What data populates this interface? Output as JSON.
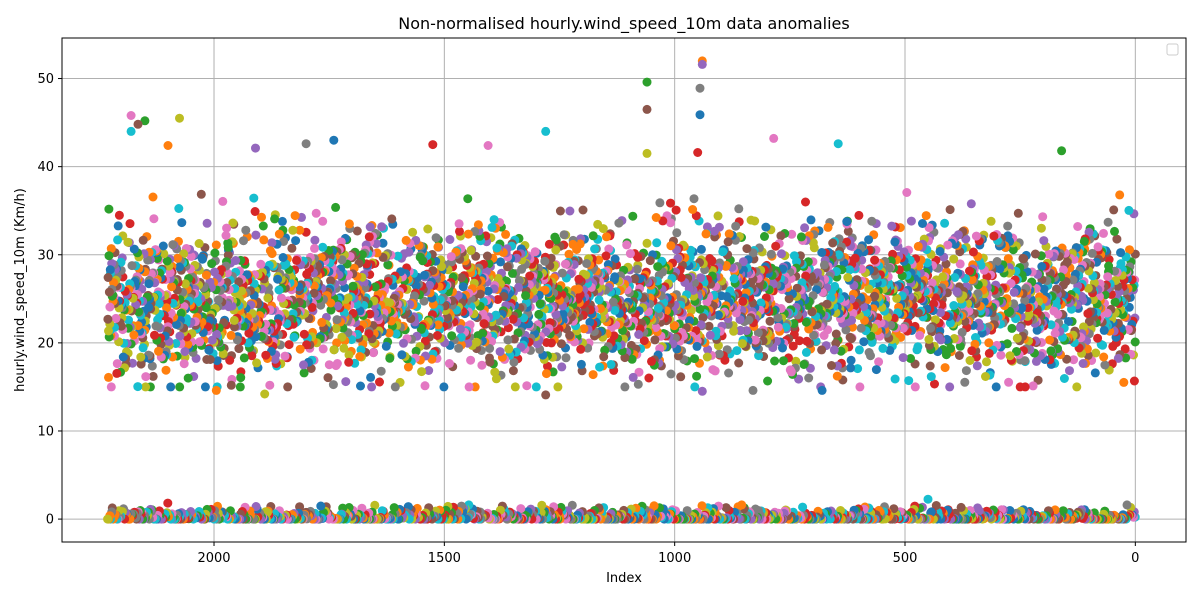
{
  "chart_data": {
    "type": "scatter",
    "title": "Non-normalised hourly.wind_speed_10m data anomalies",
    "xlabel": "Index",
    "ylabel": "hourly.wind_speed_10m (Km/h)",
    "xlim": [
      2330,
      -110
    ],
    "ylim": [
      -2.6,
      54.6
    ],
    "x_inverted": true,
    "xticks": [
      2000,
      1500,
      1000,
      500,
      0
    ],
    "yticks": [
      0,
      10,
      20,
      30,
      40,
      50
    ],
    "grid": true,
    "legend": "top-right (empty)",
    "marker": "circle",
    "index_range": [
      0,
      2230
    ],
    "colors": [
      "#1f77b4",
      "#ff7f0e",
      "#2ca02c",
      "#d62728",
      "#9467bd",
      "#8c564b",
      "#e377c2",
      "#7f7f7f",
      "#bcbd22",
      "#17becf"
    ],
    "clusters": [
      {
        "name": "upper",
        "y_range": [
          14,
          52
        ],
        "bulk_range": [
          17,
          36
        ]
      },
      {
        "name": "lower",
        "y_range": [
          0,
          3
        ],
        "bulk_range": [
          0,
          2
        ]
      }
    ],
    "notable_points": [
      {
        "x": 2180,
        "y": 45.8
      },
      {
        "x": 2180,
        "y": 44.0
      },
      {
        "x": 2150,
        "y": 45.2
      },
      {
        "x": 2165,
        "y": 44.8
      },
      {
        "x": 2075,
        "y": 45.5
      },
      {
        "x": 2100,
        "y": 42.4
      },
      {
        "x": 1910,
        "y": 42.1
      },
      {
        "x": 1800,
        "y": 42.6
      },
      {
        "x": 1740,
        "y": 43.0
      },
      {
        "x": 1525,
        "y": 42.5
      },
      {
        "x": 1405,
        "y": 42.4
      },
      {
        "x": 1280,
        "y": 44.0
      },
      {
        "x": 1060,
        "y": 49.6
      },
      {
        "x": 1060,
        "y": 46.5
      },
      {
        "x": 1060,
        "y": 41.5
      },
      {
        "x": 940,
        "y": 52.0
      },
      {
        "x": 940,
        "y": 51.6
      },
      {
        "x": 945,
        "y": 48.9
      },
      {
        "x": 945,
        "y": 45.9
      },
      {
        "x": 950,
        "y": 41.6
      },
      {
        "x": 785,
        "y": 43.2
      },
      {
        "x": 645,
        "y": 42.6
      },
      {
        "x": 160,
        "y": 41.8
      },
      {
        "x": 1280,
        "y": 14.1
      },
      {
        "x": 1890,
        "y": 14.2
      },
      {
        "x": 1995,
        "y": 14.6
      },
      {
        "x": 940,
        "y": 14.5
      },
      {
        "x": 830,
        "y": 14.6
      },
      {
        "x": 680,
        "y": 14.6
      },
      {
        "x": 250,
        "y": 15.0
      }
    ]
  }
}
